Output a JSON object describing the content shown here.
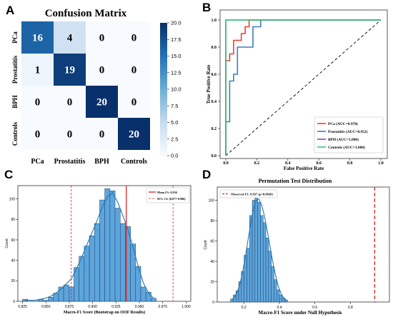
{
  "panels": {
    "A": {
      "letter": "A",
      "chart_data": {
        "type": "heatmap",
        "title": "Confusion Matrix",
        "rows": [
          "PCa",
          "Prostatitis",
          "BPH",
          "Controls"
        ],
        "columns": [
          "PCa",
          "Prostatitis",
          "BPH",
          "Controls"
        ],
        "values": [
          [
            16,
            4,
            0,
            0
          ],
          [
            1,
            19,
            0,
            0
          ],
          [
            0,
            0,
            20,
            0
          ],
          [
            0,
            0,
            0,
            20
          ]
        ],
        "colorbar": {
          "range": [
            0,
            20
          ],
          "ticks": [
            "0.0",
            "2.5",
            "5.0",
            "7.5",
            "10.0",
            "12.5",
            "15.0",
            "17.5",
            "20.0"
          ]
        },
        "colors": {
          "low": "#f7fbff",
          "high": "#08306b"
        }
      }
    },
    "B": {
      "letter": "B",
      "chart_data": {
        "type": "line",
        "xlabel": "False Positive Rate",
        "ylabel": "True Positive Rate",
        "xlim": [
          0,
          1
        ],
        "ylim": [
          0,
          1
        ],
        "xticks": [
          "0.0",
          "0.2",
          "0.4",
          "0.6",
          "0.8",
          "1.0"
        ],
        "yticks": [
          "0.0",
          "0.2",
          "0.4",
          "0.6",
          "0.8",
          "1.0"
        ],
        "legend_position": "lower-right",
        "series": [
          {
            "name": "PCa (AUC=0.978)",
            "color": "#e8412f",
            "x": [
              0,
              0,
              0.025,
              0.025,
              0.05,
              0.05,
              0.1,
              0.1,
              0.125,
              0.125,
              0.15,
              0.15,
              1.0
            ],
            "y": [
              0,
              0.7,
              0.7,
              0.75,
              0.75,
              0.85,
              0.85,
              0.9,
              0.9,
              0.95,
              0.95,
              1.0,
              1.0
            ]
          },
          {
            "name": "Prostatitis (AUC=0.952)",
            "color": "#3a7fc1",
            "x": [
              0,
              0,
              0.025,
              0.025,
              0.05,
              0.05,
              0.075,
              0.075,
              0.175,
              0.175,
              0.225,
              0.225,
              1.0
            ],
            "y": [
              0,
              0.25,
              0.25,
              0.55,
              0.55,
              0.6,
              0.6,
              0.8,
              0.8,
              0.95,
              0.95,
              1.0,
              1.0
            ]
          },
          {
            "name": "BPH (AUC=1.000)",
            "color": "#8e44ad",
            "x": [
              0,
              0,
              1.0
            ],
            "y": [
              0,
              1.0,
              1.0
            ]
          },
          {
            "name": "Controls (AUC=1.000)",
            "color": "#2ecc71",
            "x": [
              0,
              0,
              1.0
            ],
            "y": [
              0,
              1.0,
              1.0
            ]
          }
        ],
        "diagonal": {
          "x": [
            0,
            1
          ],
          "y": [
            0,
            1
          ],
          "color": "#000000"
        }
      }
    },
    "C": {
      "letter": "C",
      "chart_data": {
        "type": "bar",
        "xlabel": "Macro-F1 Score (Bootstrap on OOF Results)",
        "ylabel": "Count",
        "xlim": [
          0.82,
          1.005
        ],
        "ylim": [
          0,
          113
        ],
        "xticks": [
          "0.825",
          "0.850",
          "0.875",
          "0.900",
          "0.925",
          "0.950",
          "0.975",
          "1.000"
        ],
        "yticks": [
          "0",
          "20",
          "40",
          "60",
          "80",
          "100"
        ],
        "bin_start": 0.825,
        "bin_width": 0.0055,
        "counts": [
          2,
          0,
          0,
          2,
          1,
          4,
          8,
          14,
          16,
          14,
          33,
          44,
          54,
          64,
          76,
          99,
          110,
          108,
          91,
          76,
          73,
          56,
          34,
          14,
          9,
          3
        ],
        "kde": [
          1,
          1,
          1,
          2,
          3,
          5,
          8,
          12,
          17,
          22,
          32,
          43,
          55,
          67,
          79,
          92,
          102,
          106,
          97,
          84,
          70,
          53,
          34,
          18,
          8,
          3
        ],
        "bar_color": "#5da5dc",
        "kde_color": "#1f77b4",
        "mean_line": {
          "x": 0.936,
          "label": "Mean F1: 0.936",
          "color": "#d62728"
        },
        "ci_lines": {
          "x": [
            0.877,
            0.986
          ],
          "label": "95% CI: [0.877-0.986]",
          "color": "#d62728"
        },
        "legend_position": "top-right"
      }
    },
    "D": {
      "letter": "D",
      "chart_data": {
        "type": "bar",
        "title": "Permutation Test Distribution",
        "xlabel": "Macro-F1 Score under Null Hypothesis",
        "ylabel": "Count",
        "xlim": [
          0.05,
          1.02
        ],
        "ylim": [
          0,
          113
        ],
        "xticks": [
          "0.2",
          "0.4",
          "0.6",
          "0.8"
        ],
        "yticks": [
          "0",
          "20",
          "40",
          "60",
          "80",
          "100"
        ],
        "bin_start": 0.125,
        "bin_width": 0.0153,
        "counts": [
          3,
          7,
          11,
          20,
          30,
          46,
          53,
          85,
          100,
          105,
          98,
          85,
          78,
          63,
          50,
          35,
          22,
          12,
          7,
          4,
          2
        ],
        "kde": [
          2,
          5,
          10,
          18,
          30,
          45,
          62,
          78,
          92,
          100,
          101,
          95,
          84,
          70,
          55,
          40,
          27,
          16,
          9,
          4,
          2
        ],
        "bar_color": "#5da5dc",
        "kde_color": "#1f77b4",
        "observed_line": {
          "x": 0.937,
          "label": "Observed F1: 0.937 (p=0.0020)",
          "color": "#d62728"
        },
        "legend_position": "top-left"
      }
    }
  }
}
